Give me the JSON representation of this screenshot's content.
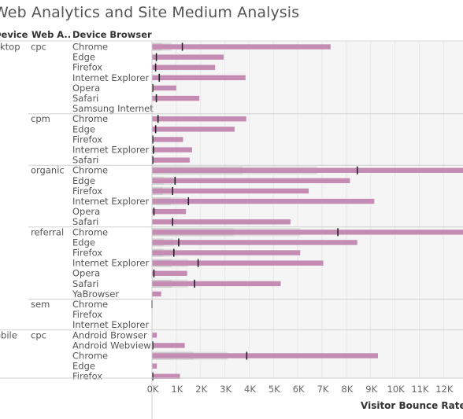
{
  "title": "Web Analytics and Site Medium Analysis",
  "headers": {
    "device": "Device",
    "web_analytics": "Web A..",
    "device_browser": "Device Browser"
  },
  "chart_data": {
    "type": "bar",
    "title": "Web Analytics and Site Medium Analysis",
    "xlabel": "Visitor Bounce Rate",
    "xlim": [
      0,
      12800
    ],
    "x_ticks": [
      "0K",
      "1K",
      "2K",
      "3K",
      "4K",
      "5K",
      "6K",
      "7K",
      "8K",
      "9K",
      "10K",
      "11K",
      "12K"
    ],
    "x_tick_values": [
      0,
      1000,
      2000,
      3000,
      4000,
      5000,
      6000,
      7000,
      8000,
      9000,
      10000,
      11000,
      12000
    ],
    "groups": [
      {
        "device": "Desktop",
        "device_label": "sktop",
        "medium": "cpc",
        "rows": [
          {
            "browser": "Chrome",
            "value": 7350,
            "ref": 1250,
            "band": 800
          },
          {
            "browser": "Edge",
            "value": 2950,
            "ref": 180,
            "band": 0
          },
          {
            "browser": "Firefox",
            "value": 2600,
            "ref": 150,
            "band": 0
          },
          {
            "browser": "Internet Explorer",
            "value": 3850,
            "ref": 300,
            "band": 0
          },
          {
            "browser": "Opera",
            "value": 1000,
            "ref": 30,
            "band": 0
          },
          {
            "browser": "Safari",
            "value": 1950,
            "ref": 180,
            "band": 0
          },
          {
            "browser": "Samsung Internet",
            "value": 0,
            "ref": null,
            "band": 0
          }
        ]
      },
      {
        "device": "",
        "device_label": "",
        "medium": "cpm",
        "rows": [
          {
            "browser": "Chrome",
            "value": 3880,
            "ref": 250,
            "band": 0
          },
          {
            "browser": "Edge",
            "value": 3400,
            "ref": 150,
            "band": 0
          },
          {
            "browser": "Firefox",
            "value": 1280,
            "ref": 30,
            "band": 0
          },
          {
            "browser": "Internet Explorer",
            "value": 1650,
            "ref": 60,
            "band": 0
          },
          {
            "browser": "Safari",
            "value": 1550,
            "ref": 30,
            "band": 0
          }
        ]
      },
      {
        "device": "",
        "device_label": "",
        "medium": "organic",
        "rows": [
          {
            "browser": "Chrome",
            "value": 12800,
            "ref": 8450,
            "band": 6800
          },
          {
            "browser": "Edge",
            "value": 8150,
            "ref": 950,
            "band": 900
          },
          {
            "browser": "Firefox",
            "value": 6450,
            "ref": 850,
            "band": 800
          },
          {
            "browser": "Internet Explorer",
            "value": 9150,
            "ref": 1500,
            "band": 1400
          },
          {
            "browser": "Opera",
            "value": 1400,
            "ref": 80,
            "band": 0
          },
          {
            "browser": "Safari",
            "value": 5700,
            "ref": 850,
            "band": 0
          }
        ]
      },
      {
        "device": "",
        "device_label": "",
        "medium": "referral",
        "rows": [
          {
            "browser": "Chrome",
            "value": 12800,
            "ref": 7650,
            "band": 6100
          },
          {
            "browser": "Edge",
            "value": 8450,
            "ref": 1100,
            "band": 900
          },
          {
            "browser": "Firefox",
            "value": 6100,
            "ref": 900,
            "band": 850
          },
          {
            "browser": "Internet Explorer",
            "value": 7050,
            "ref": 1900,
            "band": 1500
          },
          {
            "browser": "Opera",
            "value": 1450,
            "ref": 80,
            "band": 0
          },
          {
            "browser": "Safari",
            "value": 5300,
            "ref": 1750,
            "band": 1500
          },
          {
            "browser": "YaBrowser",
            "value": 380,
            "ref": null,
            "band": 0
          }
        ]
      },
      {
        "device": "",
        "device_label": "",
        "medium": "sem",
        "rows": [
          {
            "browser": "Chrome",
            "value": 0,
            "ref": 0,
            "band": 0
          },
          {
            "browser": "Firefox",
            "value": 0,
            "ref": null,
            "band": 0
          },
          {
            "browser": "Internet Explorer",
            "value": 0,
            "ref": null,
            "band": 0
          }
        ]
      },
      {
        "device": "Mobile",
        "device_label": "obile",
        "medium": "cpc",
        "rows": [
          {
            "browser": "Android Browser",
            "value": 200,
            "ref": null,
            "band": 0
          },
          {
            "browser": "Android Webview",
            "value": 1350,
            "ref": 30,
            "band": 0
          },
          {
            "browser": "Chrome",
            "value": 9300,
            "ref": 3900,
            "band": 3100
          },
          {
            "browser": "Edge",
            "value": 200,
            "ref": null,
            "band": 0
          },
          {
            "browser": "Firefox",
            "value": 1150,
            "ref": 30,
            "band": 0
          }
        ]
      }
    ]
  },
  "colors": {
    "bar": "#c48bb3",
    "reference_line": "#222222",
    "band_light": "#e0e0e0",
    "band_dark": "#cfcfcf",
    "grid": "#e8e8e8",
    "background": "#f5f5f5"
  }
}
